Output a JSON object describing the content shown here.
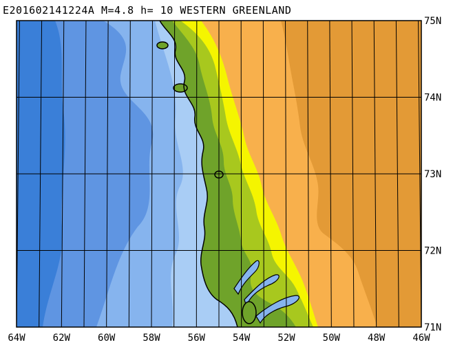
{
  "title": "E201602141224A M=4.8 h= 10 WESTERN GREENLAND",
  "map": {
    "lon_range": [
      -64,
      -46
    ],
    "lat_range": [
      71,
      75
    ],
    "lon_labels": [
      "64W",
      "62W",
      "60W",
      "58W",
      "56W",
      "54W",
      "52W",
      "50W",
      "48W",
      "46W"
    ],
    "lat_labels": [
      "71N",
      "72N",
      "73N",
      "74N",
      "75N"
    ],
    "colors": {
      "deep_ocean": "#3a7fd8",
      "ocean": "#5f95e2",
      "shelf": "#86b4ee",
      "shallow": "#a9cdf5",
      "lowland": "#6fa32a",
      "land_mid": "#a8c81e",
      "land_high": "#f5f500",
      "ice": "#f8b04c",
      "ice_high": "#e39a36",
      "coastline": "#000000",
      "grid": "#000000"
    }
  }
}
